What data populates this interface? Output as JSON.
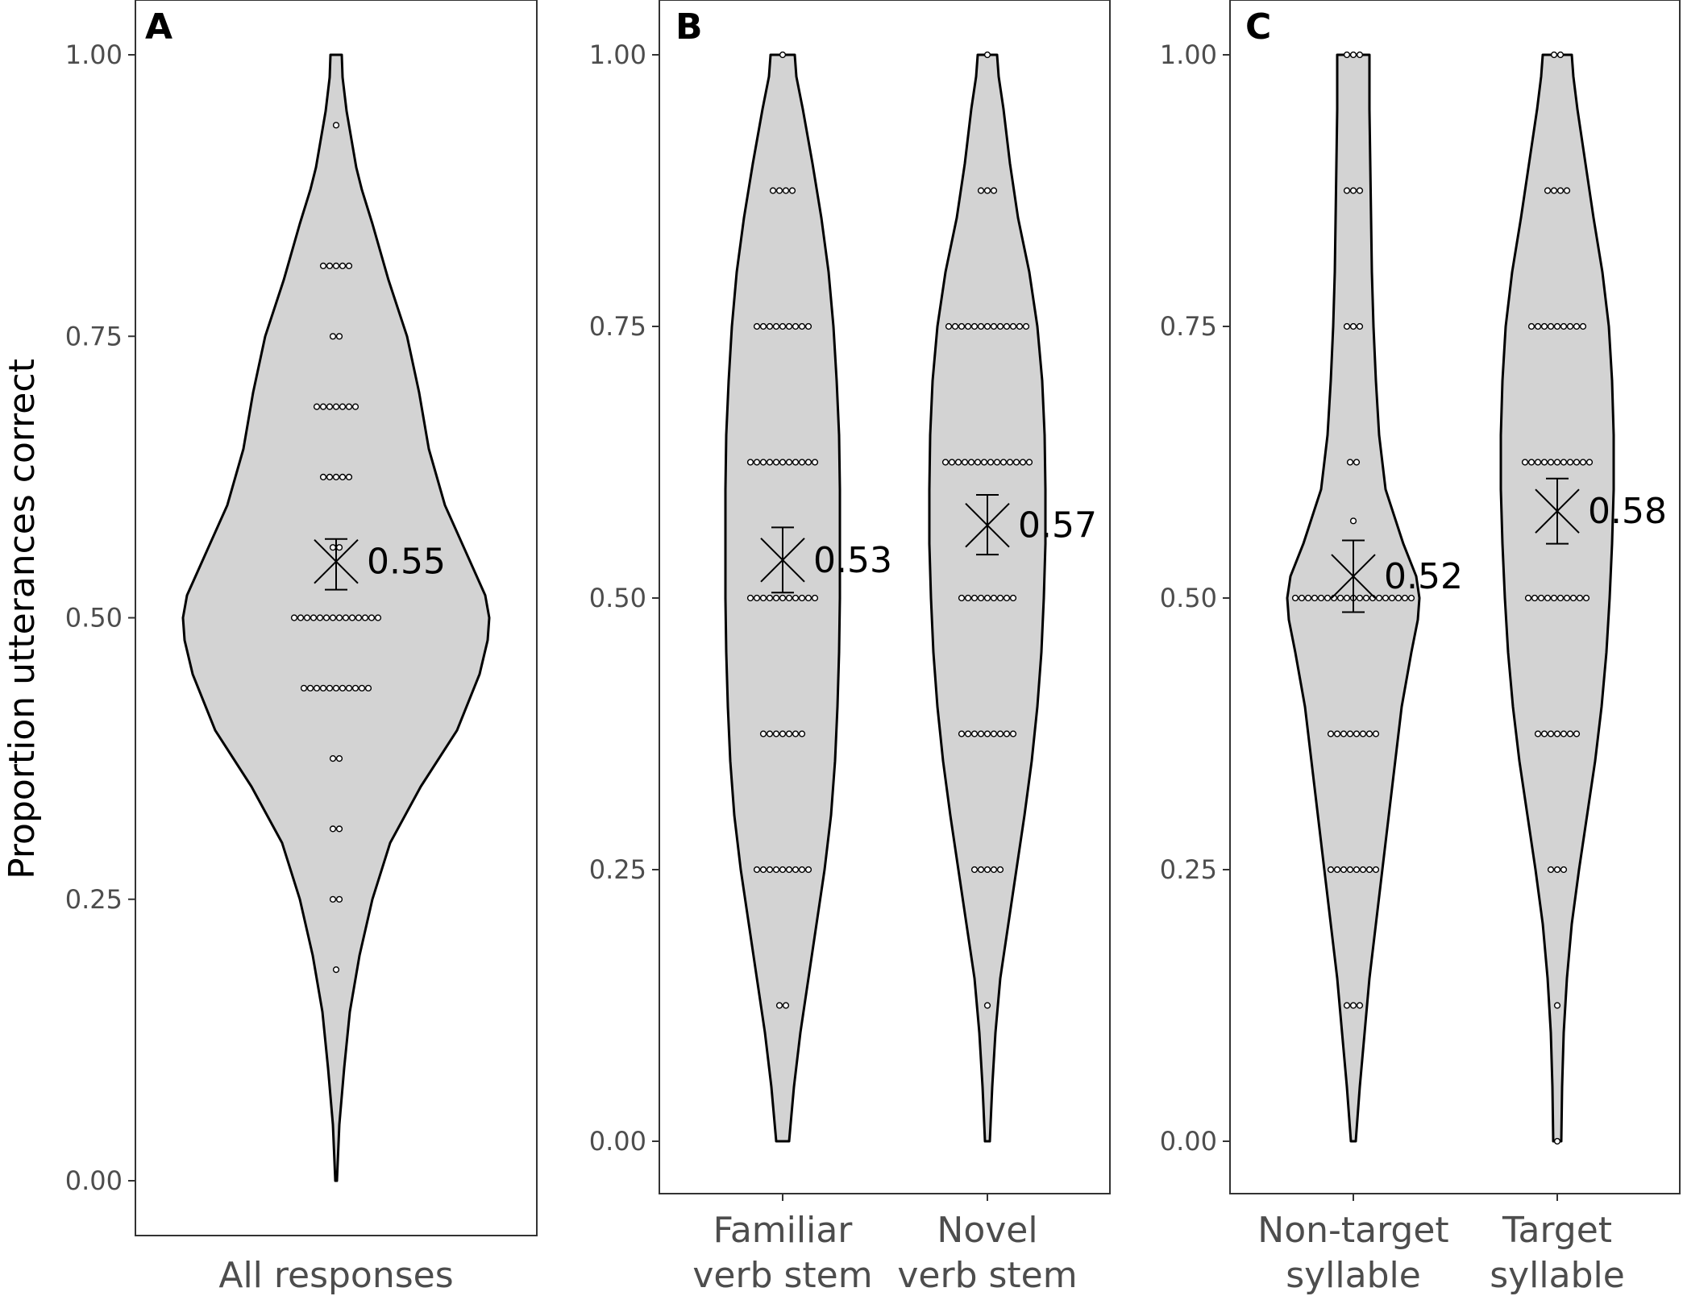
{
  "colors": {
    "violin_fill": "#d3d3d3",
    "line": "#000000",
    "tick_text": "#4d4d4d",
    "panel_border": "#333333"
  },
  "ylabel": "Proportion utterances correct",
  "chart_data": [
    {
      "type": "violin",
      "panel": "A",
      "ylim": [
        0,
        1
      ],
      "yticks": [
        "0.00",
        "0.25",
        "0.50",
        "0.75",
        "1.00"
      ],
      "groups": [
        {
          "label": "All responses",
          "mean": 0.55,
          "ci": [
            0.525,
            0.57
          ],
          "mean_label": "0.55",
          "points": [
            {
              "y": 0.9375,
              "n": 1
            },
            {
              "y": 0.8125,
              "n": 5
            },
            {
              "y": 0.75,
              "n": 2
            },
            {
              "y": 0.6875,
              "n": 7
            },
            {
              "y": 0.625,
              "n": 5
            },
            {
              "y": 0.5625,
              "n": 2
            },
            {
              "y": 0.5,
              "n": 14
            },
            {
              "y": 0.4375,
              "n": 11
            },
            {
              "y": 0.375,
              "n": 2
            },
            {
              "y": 0.3125,
              "n": 2
            },
            {
              "y": 0.25,
              "n": 2
            },
            {
              "y": 0.1875,
              "n": 1
            }
          ],
          "density": [
            [
              0.0,
              1
            ],
            [
              0.05,
              4
            ],
            [
              0.1,
              10
            ],
            [
              0.15,
              17
            ],
            [
              0.2,
              29
            ],
            [
              0.25,
              45
            ],
            [
              0.3,
              67
            ],
            [
              0.35,
              105
            ],
            [
              0.4,
              150
            ],
            [
              0.45,
              178
            ],
            [
              0.48,
              188
            ],
            [
              0.5,
              190
            ],
            [
              0.52,
              185
            ],
            [
              0.56,
              160
            ],
            [
              0.6,
              135
            ],
            [
              0.65,
              115
            ],
            [
              0.7,
              103
            ],
            [
              0.75,
              88
            ],
            [
              0.8,
              65
            ],
            [
              0.85,
              45
            ],
            [
              0.88,
              32
            ],
            [
              0.9,
              25
            ],
            [
              0.95,
              13
            ],
            [
              0.98,
              8
            ],
            [
              1.0,
              7
            ]
          ]
        }
      ]
    },
    {
      "type": "violin",
      "panel": "B",
      "ylim": [
        0,
        1
      ],
      "yticks": [
        "0.00",
        "0.25",
        "0.50",
        "0.75",
        "1.00"
      ],
      "groups": [
        {
          "label_lines": [
            "Familiar",
            "verb stem"
          ],
          "mean": 0.535,
          "ci": [
            0.505,
            0.565
          ],
          "mean_label": "0.53",
          "points": [
            {
              "y": 1.0,
              "n": 1
            },
            {
              "y": 0.875,
              "n": 4
            },
            {
              "y": 0.75,
              "n": 9
            },
            {
              "y": 0.625,
              "n": 11
            },
            {
              "y": 0.5,
              "n": 11
            },
            {
              "y": 0.375,
              "n": 7
            },
            {
              "y": 0.25,
              "n": 9
            },
            {
              "y": 0.125,
              "n": 2
            }
          ],
          "density": [
            [
              0.0,
              8
            ],
            [
              0.05,
              14
            ],
            [
              0.1,
              22
            ],
            [
              0.15,
              32
            ],
            [
              0.2,
              42
            ],
            [
              0.25,
              52
            ],
            [
              0.3,
              60
            ],
            [
              0.35,
              65
            ],
            [
              0.4,
              68
            ],
            [
              0.45,
              70
            ],
            [
              0.5,
              71
            ],
            [
              0.55,
              71
            ],
            [
              0.6,
              71
            ],
            [
              0.65,
              70
            ],
            [
              0.7,
              67
            ],
            [
              0.75,
              63
            ],
            [
              0.8,
              57
            ],
            [
              0.85,
              48
            ],
            [
              0.9,
              37
            ],
            [
              0.95,
              25
            ],
            [
              0.98,
              17
            ],
            [
              1.0,
              15
            ]
          ]
        },
        {
          "label_lines": [
            "Novel",
            "verb stem"
          ],
          "mean": 0.567,
          "ci": [
            0.54,
            0.595
          ],
          "mean_label": "0.57",
          "points": [
            {
              "y": 1.0,
              "n": 1
            },
            {
              "y": 0.875,
              "n": 3
            },
            {
              "y": 0.75,
              "n": 13
            },
            {
              "y": 0.625,
              "n": 14
            },
            {
              "y": 0.5,
              "n": 9
            },
            {
              "y": 0.375,
              "n": 9
            },
            {
              "y": 0.25,
              "n": 5
            },
            {
              "y": 0.125,
              "n": 1
            }
          ],
          "density": [
            [
              0.0,
              3
            ],
            [
              0.05,
              6
            ],
            [
              0.1,
              10
            ],
            [
              0.15,
              16
            ],
            [
              0.2,
              26
            ],
            [
              0.25,
              36
            ],
            [
              0.3,
              46
            ],
            [
              0.35,
              55
            ],
            [
              0.4,
              62
            ],
            [
              0.45,
              67
            ],
            [
              0.5,
              70
            ],
            [
              0.55,
              72
            ],
            [
              0.6,
              72
            ],
            [
              0.65,
              71
            ],
            [
              0.7,
              68
            ],
            [
              0.75,
              62
            ],
            [
              0.8,
              52
            ],
            [
              0.85,
              38
            ],
            [
              0.9,
              28
            ],
            [
              0.95,
              20
            ],
            [
              0.98,
              14
            ],
            [
              1.0,
              12
            ]
          ]
        }
      ]
    },
    {
      "type": "violin",
      "panel": "C",
      "ylim": [
        0,
        1
      ],
      "yticks": [
        "0.00",
        "0.25",
        "0.50",
        "0.75",
        "1.00"
      ],
      "groups": [
        {
          "label_lines": [
            "Non-target",
            "syllable"
          ],
          "mean": 0.52,
          "ci": [
            0.487,
            0.553
          ],
          "mean_label": "0.52",
          "points": [
            {
              "y": 1.0,
              "n": 3
            },
            {
              "y": 0.875,
              "n": 3
            },
            {
              "y": 0.75,
              "n": 3
            },
            {
              "y": 0.625,
              "n": 2
            },
            {
              "y": 0.571,
              "n": 1
            },
            {
              "y": 0.5,
              "n": 19
            },
            {
              "y": 0.375,
              "n": 8
            },
            {
              "y": 0.25,
              "n": 8
            },
            {
              "y": 0.125,
              "n": 3
            }
          ],
          "density": [
            [
              0.0,
              3
            ],
            [
              0.05,
              8
            ],
            [
              0.1,
              14
            ],
            [
              0.15,
              20
            ],
            [
              0.2,
              28
            ],
            [
              0.25,
              36
            ],
            [
              0.3,
              44
            ],
            [
              0.35,
              52
            ],
            [
              0.4,
              60
            ],
            [
              0.45,
              72
            ],
            [
              0.48,
              80
            ],
            [
              0.5,
              82
            ],
            [
              0.52,
              78
            ],
            [
              0.55,
              62
            ],
            [
              0.6,
              40
            ],
            [
              0.65,
              32
            ],
            [
              0.7,
              28
            ],
            [
              0.75,
              25
            ],
            [
              0.8,
              23
            ],
            [
              0.85,
              22
            ],
            [
              0.9,
              21
            ],
            [
              0.95,
              20
            ],
            [
              1.0,
              20
            ]
          ]
        },
        {
          "label_lines": [
            "Target",
            "syllable"
          ],
          "mean": 0.58,
          "ci": [
            0.55,
            0.61
          ],
          "mean_label": "0.58",
          "points": [
            {
              "y": 1.0,
              "n": 2
            },
            {
              "y": 0.875,
              "n": 4
            },
            {
              "y": 0.75,
              "n": 9
            },
            {
              "y": 0.625,
              "n": 11
            },
            {
              "y": 0.5,
              "n": 10
            },
            {
              "y": 0.375,
              "n": 7
            },
            {
              "y": 0.25,
              "n": 3
            },
            {
              "y": 0.125,
              "n": 1
            },
            {
              "y": 0.0,
              "n": 1
            }
          ],
          "density": [
            [
              0.0,
              5
            ],
            [
              0.05,
              6
            ],
            [
              0.1,
              8
            ],
            [
              0.15,
              12
            ],
            [
              0.2,
              18
            ],
            [
              0.25,
              27
            ],
            [
              0.3,
              37
            ],
            [
              0.35,
              47
            ],
            [
              0.4,
              55
            ],
            [
              0.45,
              61
            ],
            [
              0.5,
              65
            ],
            [
              0.55,
              68
            ],
            [
              0.6,
              70
            ],
            [
              0.65,
              70
            ],
            [
              0.7,
              68
            ],
            [
              0.75,
              64
            ],
            [
              0.8,
              56
            ],
            [
              0.85,
              45
            ],
            [
              0.9,
              35
            ],
            [
              0.95,
              25
            ],
            [
              0.98,
              20
            ],
            [
              1.0,
              18
            ]
          ]
        }
      ]
    }
  ]
}
